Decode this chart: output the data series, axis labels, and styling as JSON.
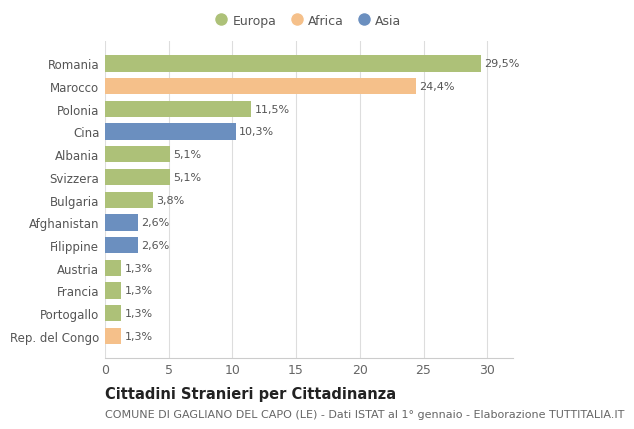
{
  "categories": [
    "Rep. del Congo",
    "Portogallo",
    "Francia",
    "Austria",
    "Filippine",
    "Afghanistan",
    "Bulgaria",
    "Svizzera",
    "Albania",
    "Cina",
    "Polonia",
    "Marocco",
    "Romania"
  ],
  "values": [
    1.3,
    1.3,
    1.3,
    1.3,
    2.6,
    2.6,
    3.8,
    5.1,
    5.1,
    10.3,
    11.5,
    24.4,
    29.5
  ],
  "labels": [
    "1,3%",
    "1,3%",
    "1,3%",
    "1,3%",
    "2,6%",
    "2,6%",
    "3,8%",
    "5,1%",
    "5,1%",
    "10,3%",
    "11,5%",
    "24,4%",
    "29,5%"
  ],
  "continents": [
    "Africa",
    "Europa",
    "Europa",
    "Europa",
    "Asia",
    "Asia",
    "Europa",
    "Europa",
    "Europa",
    "Asia",
    "Europa",
    "Africa",
    "Europa"
  ],
  "colors": {
    "Europa": "#adc178",
    "Africa": "#f5c08a",
    "Asia": "#6b8fbf"
  },
  "legend": [
    "Europa",
    "Africa",
    "Asia"
  ],
  "title": "Cittadini Stranieri per Cittadinanza",
  "subtitle": "COMUNE DI GAGLIANO DEL CAPO (LE) - Dati ISTAT al 1° gennaio - Elaborazione TUTTITALIA.IT",
  "xlim": [
    0,
    32
  ],
  "xticks": [
    0,
    5,
    10,
    15,
    20,
    25,
    30
  ],
  "bg_color": "#ffffff",
  "grid_color": "#dddddd",
  "bar_height": 0.72,
  "title_fontsize": 10.5,
  "subtitle_fontsize": 8,
  "label_fontsize": 8,
  "ytick_fontsize": 8.5,
  "xtick_fontsize": 9,
  "legend_fontsize": 9
}
